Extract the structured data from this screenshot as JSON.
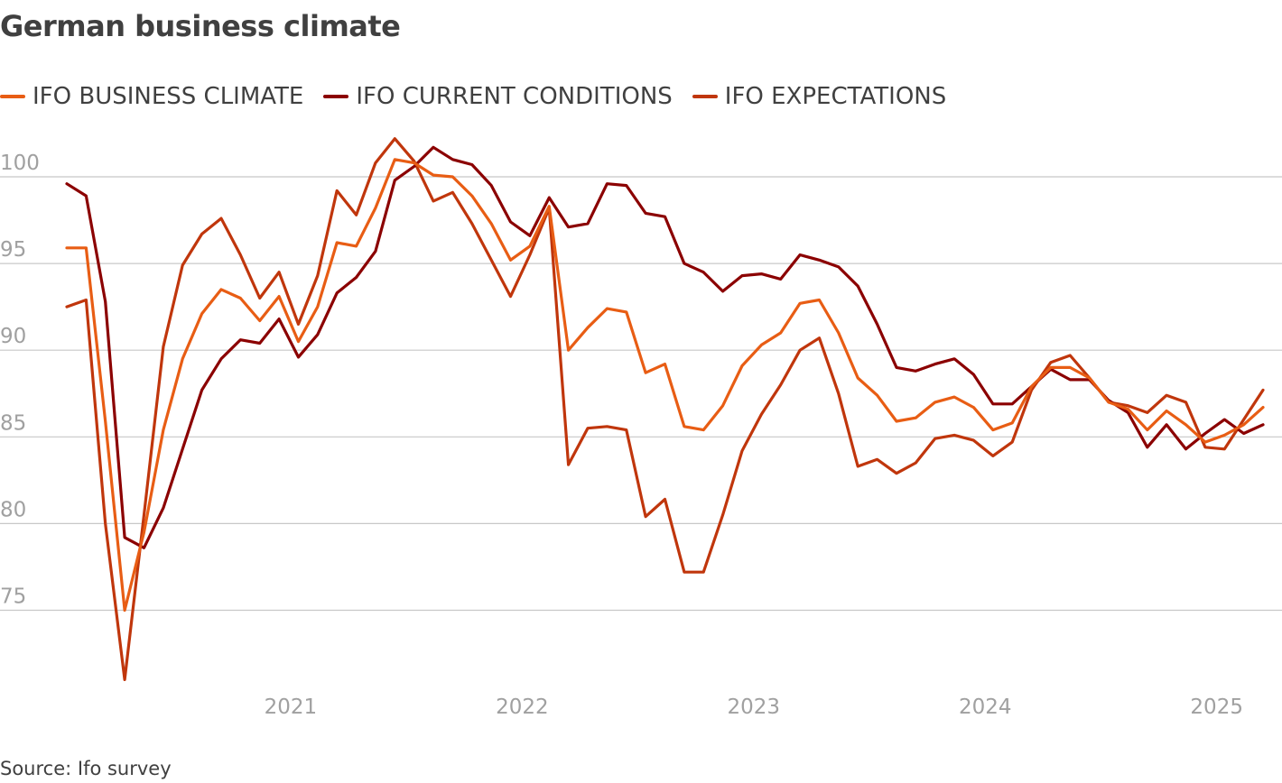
{
  "chart_data": {
    "type": "line",
    "title": "German business climate",
    "source": "Source: Ifo survey",
    "x_start": "2020-01",
    "x_end": "2025-03",
    "frequency": "monthly",
    "x_ticks": [
      "2021",
      "2022",
      "2023",
      "2024",
      "2025"
    ],
    "y_ticks": [
      75,
      80,
      85,
      90,
      95,
      100
    ],
    "ylim": [
      70.8,
      103
    ],
    "grid": "horizontal",
    "legend_position": "top-left",
    "series": [
      {
        "name": "IFO BUSINESS CLIMATE",
        "color": "#e85d14",
        "values": [
          95.9,
          95.9,
          85.9,
          75.0,
          79.5,
          85.4,
          89.5,
          92.1,
          93.5,
          93.0,
          91.7,
          93.1,
          90.5,
          92.5,
          96.2,
          96.0,
          98.2,
          101.0,
          100.8,
          100.1,
          100.0,
          98.9,
          97.3,
          95.2,
          96.0,
          98.3,
          90.0,
          91.3,
          92.4,
          92.2,
          88.7,
          89.2,
          85.6,
          85.4,
          86.8,
          89.1,
          90.3,
          91.0,
          92.7,
          92.9,
          91.0,
          88.4,
          87.4,
          85.9,
          86.1,
          87.0,
          87.3,
          86.7,
          85.4,
          85.8,
          87.9,
          89.0,
          89.0,
          88.4,
          87.0,
          86.6,
          85.4,
          86.5,
          85.7,
          84.7,
          85.1,
          85.7,
          86.7
        ]
      },
      {
        "name": "IFO CURRENT CONDITIONS",
        "color": "#8b0000",
        "values": [
          99.6,
          98.9,
          92.8,
          79.2,
          78.6,
          80.9,
          84.3,
          87.7,
          89.5,
          90.6,
          90.4,
          91.8,
          89.6,
          90.9,
          93.3,
          94.2,
          95.7,
          99.8,
          100.6,
          101.7,
          101.0,
          100.7,
          99.5,
          97.4,
          96.6,
          98.8,
          97.1,
          97.3,
          99.6,
          99.5,
          97.9,
          97.7,
          95.0,
          94.5,
          93.4,
          94.3,
          94.4,
          94.1,
          95.5,
          95.2,
          94.8,
          93.7,
          91.5,
          89.0,
          88.8,
          89.2,
          89.5,
          88.6,
          86.9,
          86.9,
          87.9,
          88.9,
          88.3,
          88.3,
          87.1,
          86.4,
          84.4,
          85.7,
          84.3,
          85.2,
          86.0,
          85.2,
          85.7
        ]
      },
      {
        "name": "IFO EXPECTATIONS",
        "color": "#c0360c",
        "values": [
          92.5,
          92.9,
          80.0,
          71.0,
          80.5,
          90.2,
          94.9,
          96.7,
          97.6,
          95.5,
          93.0,
          94.5,
          91.5,
          94.3,
          99.2,
          97.8,
          100.8,
          102.2,
          100.9,
          98.6,
          99.1,
          97.3,
          95.2,
          93.1,
          95.5,
          98.2,
          83.4,
          85.5,
          85.6,
          85.4,
          80.4,
          81.4,
          77.2,
          77.2,
          80.5,
          84.2,
          86.3,
          88.0,
          90.0,
          90.7,
          87.5,
          83.3,
          83.7,
          82.9,
          83.5,
          84.9,
          85.1,
          84.8,
          83.9,
          84.7,
          87.7,
          89.3,
          89.7,
          88.4,
          87.0,
          86.8,
          86.4,
          87.4,
          87.0,
          84.4,
          84.3,
          86.0,
          87.7
        ]
      }
    ]
  }
}
